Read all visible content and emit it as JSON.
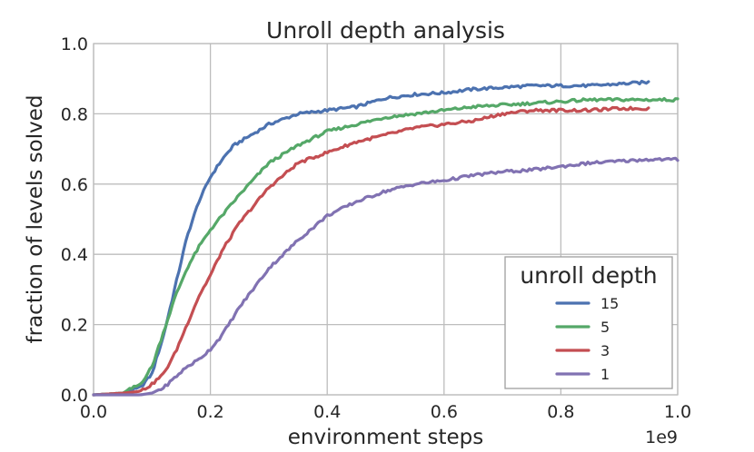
{
  "chart_data": {
    "type": "line",
    "title": "Unroll depth analysis",
    "xlabel": "environment steps",
    "ylabel": "fraction of levels solved",
    "x_multiplier_label": "1e9",
    "xlim": [
      0.0,
      1.0
    ],
    "ylim": [
      0.0,
      1.0
    ],
    "x_ticks": [
      0.0,
      0.2,
      0.4,
      0.6,
      0.8,
      1.0
    ],
    "x_tick_labels": [
      "0.0",
      "0.2",
      "0.4",
      "0.6",
      "0.8",
      "1.0"
    ],
    "y_ticks": [
      0.0,
      0.2,
      0.4,
      0.6,
      0.8,
      1.0
    ],
    "y_tick_labels": [
      "0.0",
      "0.2",
      "0.4",
      "0.6",
      "0.8",
      "1.0"
    ],
    "grid": true,
    "legend": {
      "title": "unroll depth",
      "position": "lower-right"
    },
    "series": [
      {
        "name": "15",
        "color": "#4c72b0",
        "x": [
          0.0,
          0.05,
          0.08,
          0.1,
          0.12,
          0.14,
          0.16,
          0.18,
          0.2,
          0.22,
          0.24,
          0.26,
          0.3,
          0.35,
          0.4,
          0.45,
          0.5,
          0.55,
          0.6,
          0.65,
          0.7,
          0.75,
          0.8,
          0.85,
          0.9,
          0.95
        ],
        "y": [
          0.0,
          0.005,
          0.02,
          0.06,
          0.17,
          0.31,
          0.45,
          0.55,
          0.62,
          0.67,
          0.71,
          0.73,
          0.77,
          0.8,
          0.81,
          0.82,
          0.845,
          0.855,
          0.86,
          0.87,
          0.875,
          0.88,
          0.88,
          0.88,
          0.885,
          0.89
        ]
      },
      {
        "name": "5",
        "color": "#55a868",
        "x": [
          0.0,
          0.05,
          0.08,
          0.1,
          0.12,
          0.14,
          0.16,
          0.18,
          0.2,
          0.22,
          0.25,
          0.3,
          0.35,
          0.4,
          0.45,
          0.5,
          0.55,
          0.6,
          0.65,
          0.7,
          0.75,
          0.8,
          0.85,
          0.9,
          0.95,
          1.0
        ],
        "y": [
          0.0,
          0.005,
          0.03,
          0.08,
          0.18,
          0.28,
          0.36,
          0.42,
          0.47,
          0.51,
          0.57,
          0.66,
          0.71,
          0.75,
          0.77,
          0.79,
          0.8,
          0.81,
          0.82,
          0.825,
          0.83,
          0.835,
          0.84,
          0.84,
          0.84,
          0.84
        ]
      },
      {
        "name": "3",
        "color": "#c44e52",
        "x": [
          0.0,
          0.05,
          0.08,
          0.1,
          0.12,
          0.14,
          0.16,
          0.18,
          0.2,
          0.22,
          0.25,
          0.3,
          0.35,
          0.4,
          0.45,
          0.5,
          0.55,
          0.6,
          0.65,
          0.7,
          0.75,
          0.8,
          0.85,
          0.9,
          0.95
        ],
        "y": [
          0.0,
          0.005,
          0.01,
          0.03,
          0.06,
          0.12,
          0.2,
          0.28,
          0.34,
          0.41,
          0.49,
          0.59,
          0.66,
          0.69,
          0.72,
          0.74,
          0.76,
          0.77,
          0.78,
          0.8,
          0.81,
          0.81,
          0.81,
          0.815,
          0.815
        ]
      },
      {
        "name": "1",
        "color": "#8172b2",
        "x": [
          0.0,
          0.05,
          0.08,
          0.1,
          0.12,
          0.14,
          0.16,
          0.18,
          0.2,
          0.22,
          0.25,
          0.3,
          0.35,
          0.4,
          0.45,
          0.5,
          0.55,
          0.6,
          0.65,
          0.7,
          0.75,
          0.8,
          0.85,
          0.9,
          0.95,
          1.0
        ],
        "y": [
          0.0,
          0.0,
          0.0,
          0.005,
          0.02,
          0.05,
          0.08,
          0.1,
          0.13,
          0.17,
          0.25,
          0.36,
          0.44,
          0.51,
          0.55,
          0.58,
          0.6,
          0.61,
          0.625,
          0.635,
          0.64,
          0.65,
          0.66,
          0.665,
          0.67,
          0.67
        ]
      }
    ]
  }
}
